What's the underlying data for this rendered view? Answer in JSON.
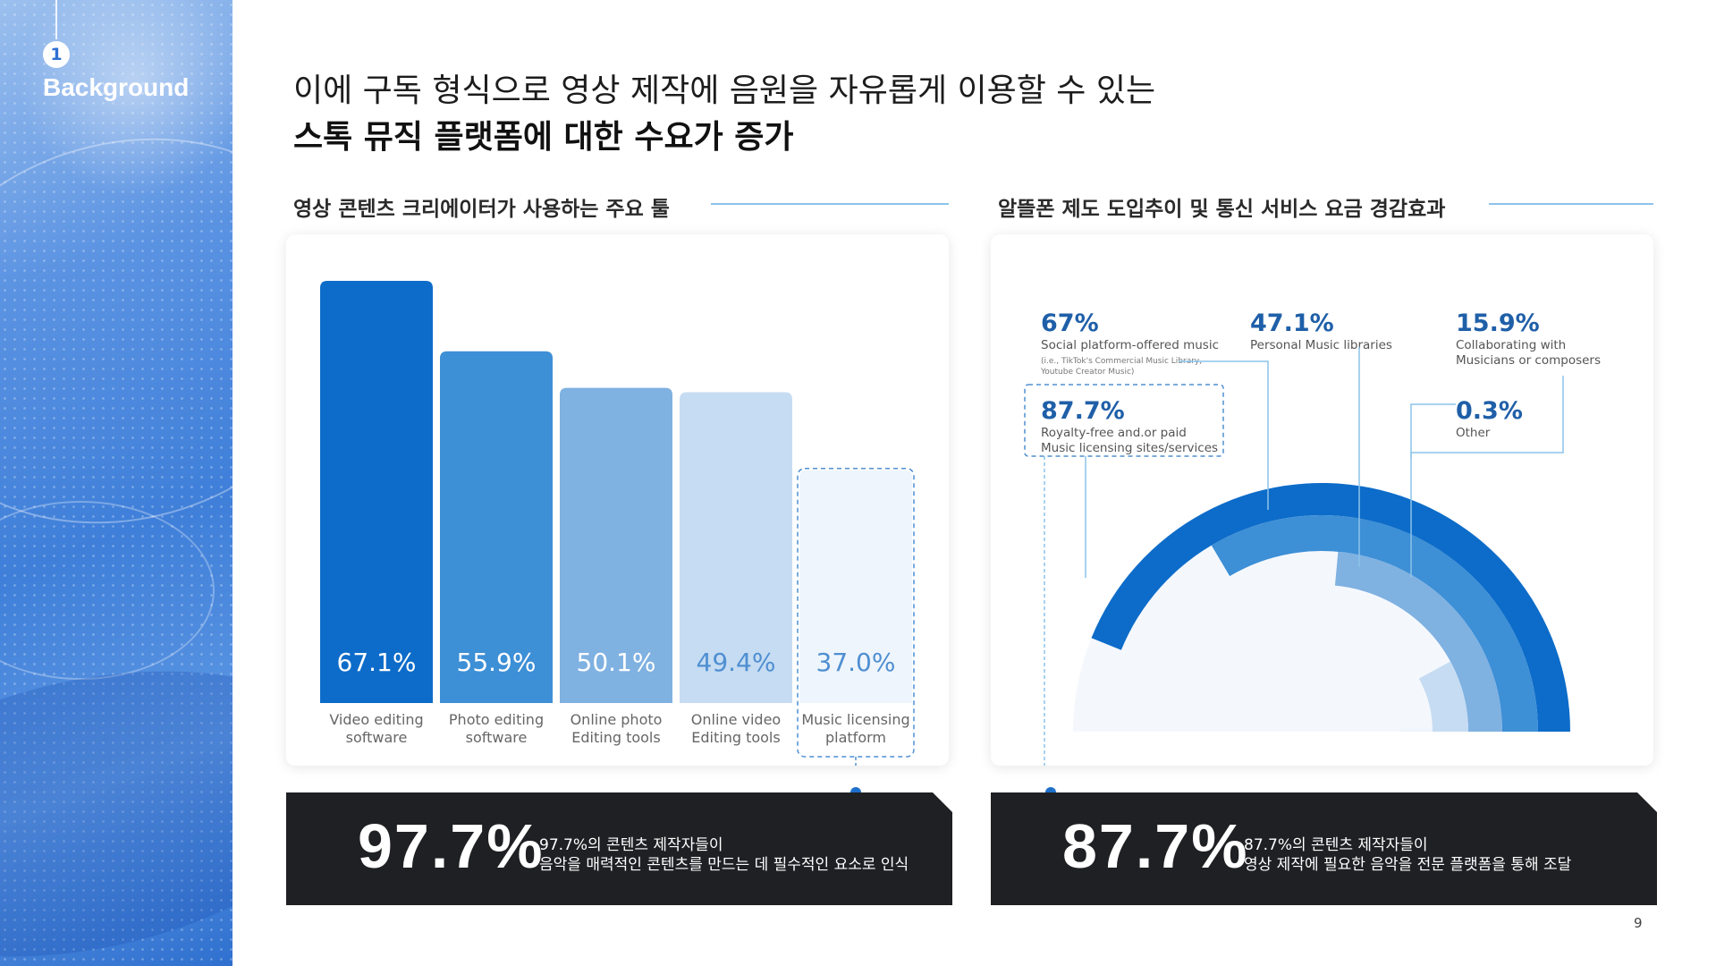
{
  "side_panel": {
    "section_number": "1",
    "section_title": "Background"
  },
  "headline": {
    "line1": "이에 구독 형식으로 영상 제작에 음원을 자유롭게 이용할 수 있는",
    "line2": "스톡 뮤직 플랫폼에 대한 수요가 증가"
  },
  "left_section": {
    "title": "영상 콘텐츠 크리에이터가 사용하는 주요 툴"
  },
  "right_section": {
    "title": "알뜰폰 제도 도입추이 및 통신 서비스 요금 경감효과"
  },
  "colors": {
    "dark_blue": "#0d6cc9",
    "mid_blue": "#3d8fd6",
    "light_blue": "#7fb1e1",
    "pale_blue": "#c6dcf2",
    "faint_blue": "#eef5fc",
    "rule_blue": "#8cc4ea",
    "stat_bg": "#1f2023"
  },
  "chart_data": [
    {
      "type": "bar",
      "categories": [
        [
          "Video editing",
          "software"
        ],
        [
          "Photo editing",
          "software"
        ],
        [
          "Online photo",
          "Editing tools"
        ],
        [
          "Online video",
          "Editing tools"
        ],
        [
          "Music licensing",
          "platform"
        ]
      ],
      "values": [
        67.1,
        55.9,
        50.1,
        49.4,
        37.0
      ],
      "value_labels": [
        "67.1%",
        "55.9%",
        "50.1%",
        "49.4%",
        "37.0%"
      ],
      "ylim": [
        0,
        67.1
      ],
      "highlight": "Music licensing platform"
    },
    {
      "type": "radial-bar",
      "unit": "%",
      "entries": [
        {
          "value": 87.7,
          "label": "87.7%",
          "lines": [
            "Royalty-free and.or paid",
            "Music licensing sites/services"
          ]
        },
        {
          "value": 67,
          "label": "67%",
          "lines": [
            "Social platform-offered music"
          ],
          "note": [
            "(i.e., TikTok's Commercial Music Library,",
            "Youtube Creator Music)"
          ]
        },
        {
          "value": 47.1,
          "label": "47.1%",
          "lines": [
            "Personal Music libraries"
          ]
        },
        {
          "value": 15.9,
          "label": "15.9%",
          "lines": [
            "Collaborating with",
            "Musicians or composers"
          ]
        },
        {
          "value": 0.3,
          "label": "0.3%",
          "lines": [
            "Other"
          ]
        }
      ]
    }
  ],
  "stats": {
    "left": {
      "big": "97.7%",
      "desc1": "97.7%의 콘텐츠 제작자들이",
      "desc2": "음악을 매력적인 콘텐츠를 만드는 데 필수적인 요소로 인식"
    },
    "right": {
      "big": "87.7%",
      "desc1": "87.7%의 콘텐츠 제작자들이",
      "desc2": "영상 제작에 필요한 음악을 전문 플랫폼을 통해 조달"
    }
  },
  "page_number": "9"
}
